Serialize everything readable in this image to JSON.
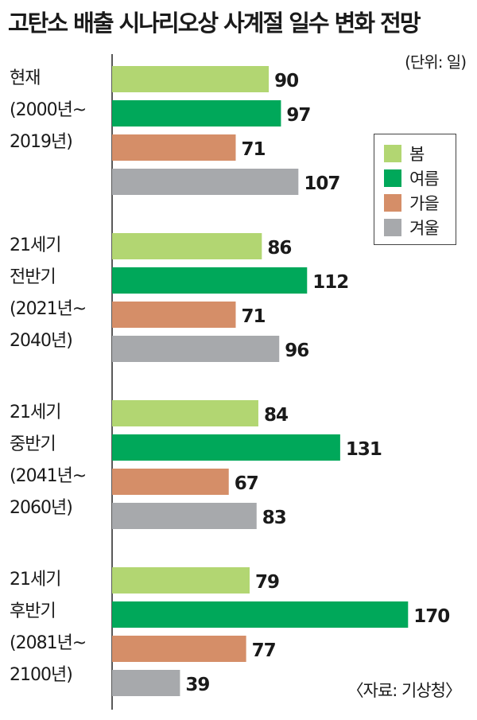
{
  "title": "고탄소 배출 시나리오상 사계절 일수 변화 전망",
  "unit": "(단위: 일)",
  "source": "〈자료: 기상청〉",
  "colors": {
    "spring": "#b2d672",
    "summer": "#00a85a",
    "autumn": "#d58e68",
    "winter": "#a7a9ac"
  },
  "chart_data": {
    "type": "bar",
    "orientation": "horizontal",
    "categories": [
      [
        "현재",
        "(2000년~",
        "2019년)"
      ],
      [
        "21세기",
        "전반기",
        "(2021년~",
        "2040년)"
      ],
      [
        "21세기",
        "중반기",
        "(2041년~",
        "2060년)"
      ],
      [
        "21세기",
        "후반기",
        "(2081년~",
        "2100년)"
      ]
    ],
    "series": [
      {
        "name": "봄",
        "values": [
          90,
          86,
          84,
          79
        ]
      },
      {
        "name": "여름",
        "values": [
          97,
          112,
          131,
          170
        ]
      },
      {
        "name": "가을",
        "values": [
          71,
          71,
          67,
          77
        ]
      },
      {
        "name": "겨울",
        "values": [
          107,
          96,
          83,
          39
        ]
      }
    ],
    "legend": "right",
    "grid": false
  }
}
